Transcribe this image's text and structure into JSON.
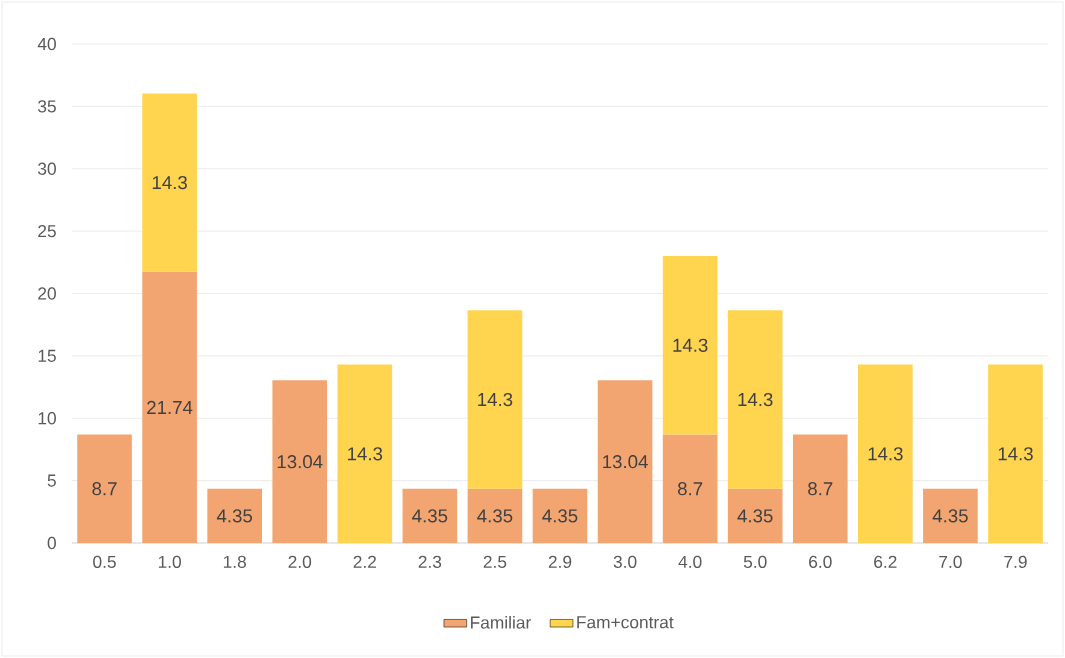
{
  "chart_data": {
    "type": "bar",
    "stacked": true,
    "categories": [
      "0.5",
      "1.0",
      "1.8",
      "2.0",
      "2.2",
      "2.3",
      "2.5",
      "2.9",
      "3.0",
      "4.0",
      "5.0",
      "6.0",
      "6.2",
      "7.0",
      "7.9"
    ],
    "series": [
      {
        "name": "Familiar",
        "color": "#f2a571",
        "values": [
          8.7,
          21.74,
          4.35,
          13.04,
          null,
          4.35,
          4.35,
          4.35,
          13.04,
          8.7,
          4.35,
          8.7,
          null,
          4.35,
          null
        ]
      },
      {
        "name": "Fam+contrat",
        "color": "#ffd44f",
        "values": [
          null,
          14.3,
          null,
          null,
          14.3,
          null,
          14.3,
          null,
          null,
          14.3,
          14.3,
          null,
          14.3,
          null,
          14.3
        ]
      }
    ],
    "ylim": [
      0,
      40
    ],
    "yticks": [
      0,
      5,
      10,
      15,
      20,
      25,
      30,
      35,
      40
    ],
    "grid": "y",
    "legend": "bottom",
    "data_labels": true
  }
}
